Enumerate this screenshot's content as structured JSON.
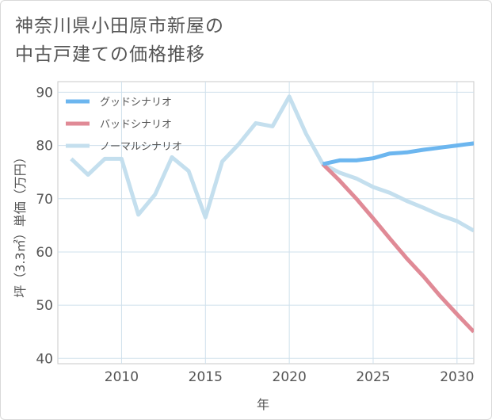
{
  "title_lines": [
    "神奈川県小田原市新屋の",
    "中古戸建ての価格推移"
  ],
  "chart_data": {
    "type": "line",
    "xlabel": "年",
    "ylabel": "坪（3.3㎡）単価（万円）",
    "xlim": [
      2006.2,
      2031
    ],
    "ylim": [
      39,
      92
    ],
    "xticks": [
      2010,
      2015,
      2020,
      2025,
      2030
    ],
    "yticks": [
      40,
      50,
      60,
      70,
      80,
      90
    ],
    "grid": true,
    "legend_position": "top-left",
    "series": [
      {
        "name": "グッドシナリオ",
        "color": "#6cb6ef",
        "x": [
          2022,
          2023,
          2024,
          2025,
          2026,
          2027,
          2028,
          2029,
          2030,
          2031
        ],
        "y": [
          76.5,
          77.2,
          77.2,
          77.6,
          78.5,
          78.7,
          79.2,
          79.6,
          80.0,
          80.4
        ]
      },
      {
        "name": "バッドシナリオ",
        "color": "#e08a96",
        "x": [
          2022,
          2023,
          2024,
          2025,
          2026,
          2027,
          2028,
          2029,
          2030,
          2031
        ],
        "y": [
          76.5,
          73.4,
          70.0,
          66.3,
          62.5,
          58.8,
          55.4,
          51.7,
          48.3,
          45.0
        ]
      },
      {
        "name": "ノーマルシナリオ",
        "color": "#c4dfee",
        "x": [
          2007,
          2008,
          2009,
          2010,
          2011,
          2012,
          2013,
          2014,
          2015,
          2016,
          2017,
          2018,
          2019,
          2020,
          2021,
          2022,
          2023,
          2024,
          2025,
          2026,
          2027,
          2028,
          2029,
          2030,
          2031
        ],
        "y": [
          77.5,
          74.5,
          77.5,
          77.5,
          67.0,
          70.8,
          77.8,
          75.2,
          66.5,
          77.0,
          80.3,
          84.2,
          83.6,
          89.2,
          82.2,
          76.5,
          74.9,
          73.8,
          72.2,
          71.1,
          69.6,
          68.3,
          66.9,
          65.8,
          64.0
        ]
      }
    ]
  }
}
